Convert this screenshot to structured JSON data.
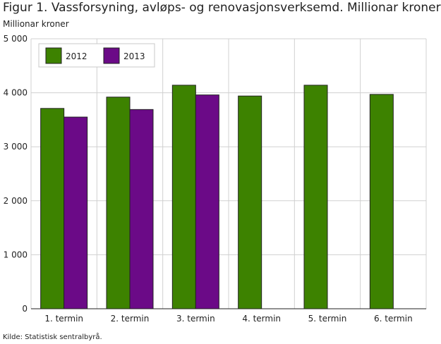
{
  "title": "Figur 1. Vassforsyning, avløps- og renovasjonsverksemd. Millionar kroner",
  "subtitle": "Millionar kroner",
  "source": "Kilde: Statistisk sentralbyrå.",
  "chart_data": {
    "type": "bar",
    "categories": [
      "1. termin",
      "2. termin",
      "3. termin",
      "4. termin",
      "5. termin",
      "6. termin"
    ],
    "series": [
      {
        "name": "2012",
        "color": "#3d8200",
        "values": [
          3710,
          3920,
          4140,
          3940,
          4140,
          3970
        ]
      },
      {
        "name": "2013",
        "color": "#6b0a87",
        "values": [
          3550,
          3690,
          3960,
          null,
          null,
          null
        ]
      }
    ],
    "xlabel": "",
    "ylabel": "",
    "ylim": [
      0,
      5000
    ],
    "yticks": [
      0,
      1000,
      2000,
      3000,
      4000,
      5000
    ],
    "ytick_labels": [
      "0",
      "1 000",
      "2 000",
      "3 000",
      "4 000",
      "5 000"
    ],
    "grid": true,
    "legend_position": "top-left"
  }
}
